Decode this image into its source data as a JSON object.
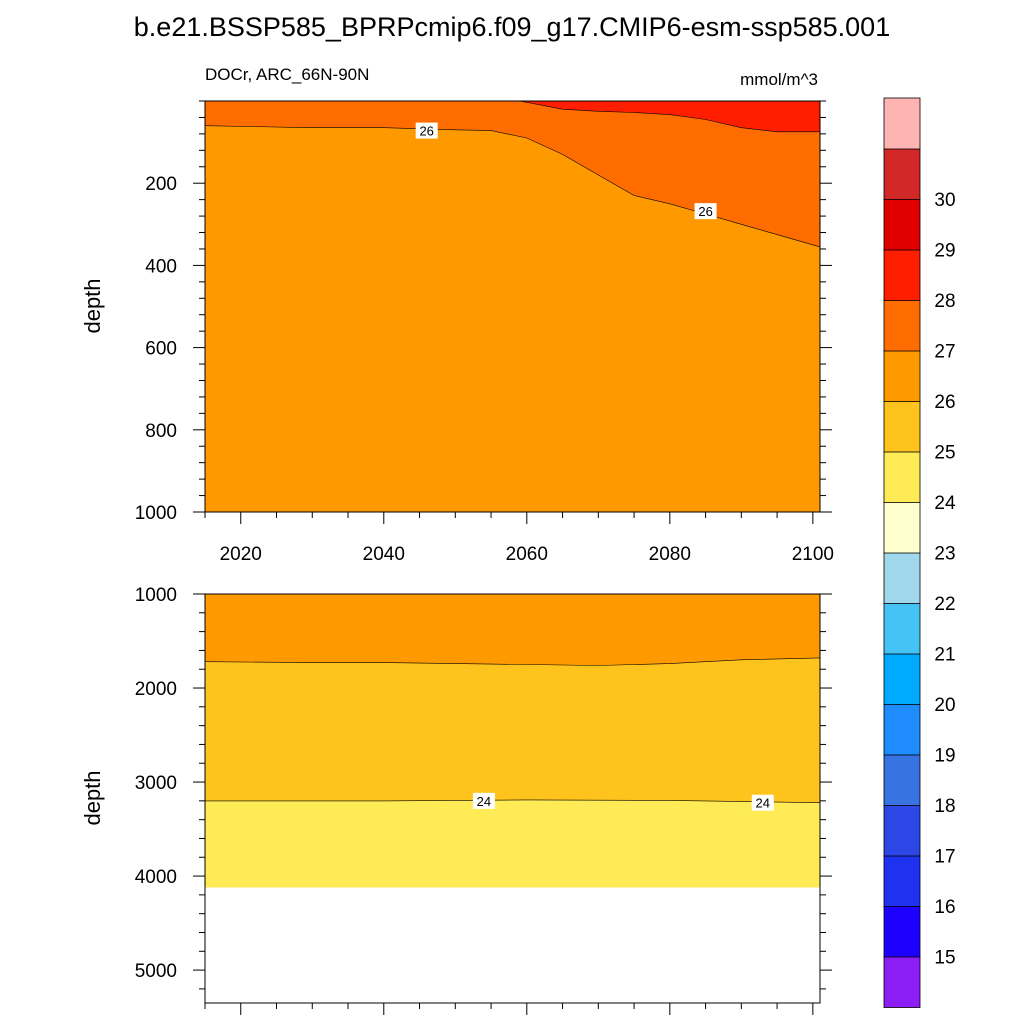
{
  "title": "b.e21.BSSP585_BPRPcmip6.f09_g17.CMIP6-esm-ssp585.001",
  "chart_data": [
    {
      "type": "contour",
      "left_label": "DOCr, ARC_66N-90N",
      "units": "mmol/m^3",
      "ylabel": "depth",
      "xlim": [
        2015,
        2101
      ],
      "ylim": [
        1000,
        0
      ],
      "xticks": [
        2020,
        2040,
        2060,
        2080,
        2100
      ],
      "yticks": [
        200,
        400,
        600,
        800,
        1000
      ],
      "base_level": 25,
      "fill_colors": {
        "25": "#FF9900",
        "26": "#FF6D00",
        "27": "#FF1E00"
      },
      "regions": [
        {
          "level": 26,
          "x": [
            2015,
            2030,
            2040,
            2050,
            2055,
            2060,
            2065,
            2070,
            2075,
            2080,
            2085,
            2090,
            2095,
            2101
          ],
          "depth": [
            60,
            65,
            65,
            70,
            72,
            90,
            130,
            180,
            230,
            250,
            275,
            300,
            325,
            355
          ]
        },
        {
          "level": 27,
          "x": [
            2059,
            2065,
            2070,
            2075,
            2080,
            2085,
            2090,
            2095,
            2101
          ],
          "depth": [
            0,
            20,
            25,
            28,
            33,
            45,
            65,
            75,
            75
          ]
        }
      ],
      "contour_labels": [
        {
          "text": "26",
          "x": 2046,
          "depth": 72
        },
        {
          "text": "26",
          "x": 2085,
          "depth": 268
        }
      ]
    },
    {
      "type": "contour",
      "ylabel": "depth",
      "xlim": [
        2015,
        2101
      ],
      "ylim": [
        5350,
        1000
      ],
      "yticks": [
        1000,
        2000,
        3000,
        4000,
        5000
      ],
      "base_level": 24,
      "fill_colors": {
        "23": "#FFEB55",
        "24": "#FFC31E",
        "25": "#FF9900"
      },
      "bottom_depth": 4120,
      "regions": [
        {
          "level": 23,
          "x": [
            2015,
            2040,
            2060,
            2080,
            2101
          ],
          "depth": [
            3200,
            3200,
            3190,
            3195,
            3220
          ]
        },
        {
          "level": 25,
          "x": [
            2015,
            2030,
            2040,
            2060,
            2070,
            2080,
            2090,
            2101
          ],
          "depth": [
            1720,
            1730,
            1730,
            1750,
            1760,
            1740,
            1700,
            1680
          ]
        }
      ],
      "contour_labels": [
        {
          "text": "24",
          "x": 2054,
          "depth": 3200
        },
        {
          "text": "24",
          "x": 2093,
          "depth": 3220
        }
      ]
    }
  ],
  "colorbar": {
    "labels": [
      "15",
      "16",
      "17",
      "18",
      "19",
      "20",
      "21",
      "22",
      "23",
      "24",
      "25",
      "26",
      "27",
      "28",
      "29",
      "30"
    ],
    "colors": [
      "#8C1EF5",
      "#1E00FF",
      "#1E32F0",
      "#2D46E6",
      "#3773E1",
      "#1E8CFF",
      "#00AAFF",
      "#46C3F5",
      "#A0D7EB",
      "#FFFFCD",
      "#FFEB55",
      "#FFC31E",
      "#FF9900",
      "#FF6D00",
      "#FF1E00",
      "#E10000",
      "#D22828",
      "#FFB4B4"
    ]
  }
}
